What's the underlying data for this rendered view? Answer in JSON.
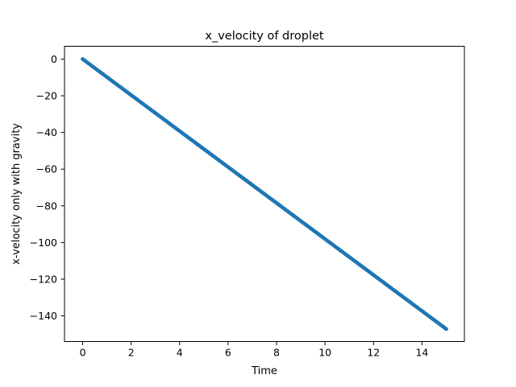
{
  "chart_data": {
    "type": "line",
    "title": "x_velocity of droplet",
    "xlabel": "Time",
    "ylabel": "x-velocity only with gravity",
    "xlim": [
      -0.75,
      15.75
    ],
    "ylim": [
      -154,
      7
    ],
    "xticks": [
      0,
      2,
      4,
      6,
      8,
      10,
      12,
      14
    ],
    "yticks": [
      0,
      -20,
      -40,
      -60,
      -80,
      -100,
      -120,
      -140
    ],
    "grid": false,
    "legend": "none",
    "series": [
      {
        "x": [
          0,
          15
        ],
        "y": [
          0,
          -147.15
        ],
        "color": "#1f77b4",
        "style": "dense markers",
        "samples": 250
      }
    ]
  }
}
